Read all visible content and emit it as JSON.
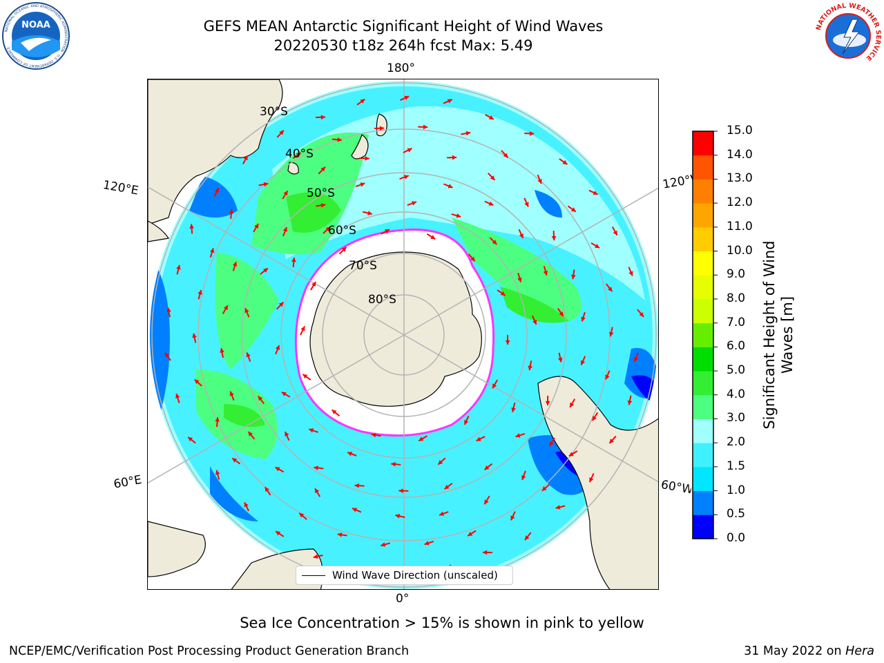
{
  "title": {
    "line1": "GEFS MEAN Antarctic Significant Height of Wind Waves",
    "line2": "20220530 t18z 264h fcst   Max: 5.49"
  },
  "logos": {
    "left": {
      "name": "NOAA",
      "ring_text": "NATIONAL OCEANIC AND ATMOSPHERIC ADMINISTRATION · U.S. DEPARTMENT OF COMMERCE"
    },
    "right": {
      "name": "NATIONAL WEATHER SERVICE"
    }
  },
  "map": {
    "projection": "south polar stereographic",
    "longitude_labels": {
      "top": "180°",
      "bottom": "0°",
      "left_upper": "120°E",
      "left_lower": "60°E",
      "right_upper": "120°W",
      "right_lower": "60°W"
    },
    "latitude_labels": [
      "30°S",
      "40°S",
      "50°S",
      "60°S",
      "70°S",
      "80°S"
    ],
    "legend_label": "Wind Wave Direction (unscaled)",
    "colors": {
      "land": "#efebdb",
      "sea_ice": "#ffffff",
      "ice_edge": [
        "#ff33ff",
        "#ffa500",
        "#ffff00"
      ],
      "arrows": "#ff0000",
      "grid": "#b3b3b3"
    }
  },
  "colorbar": {
    "title": "Significant Height of Wind Waves [m]",
    "ticks": [
      "0.0",
      "0.5",
      "1.0",
      "1.5",
      "2.0",
      "3.0",
      "4.0",
      "5.0",
      "6.0",
      "7.0",
      "8.0",
      "9.0",
      "10.0",
      "11.0",
      "12.0",
      "13.0",
      "14.0",
      "15.0"
    ],
    "colors": [
      "#0000ff",
      "#0080ff",
      "#00e6ff",
      "#40f0ff",
      "#a0ffff",
      "#4dff80",
      "#33ee33",
      "#00dd00",
      "#66ee00",
      "#ccff00",
      "#e6ff00",
      "#ffff00",
      "#ffcc00",
      "#ffa500",
      "#ff8000",
      "#ff5500",
      "#ff0000"
    ]
  },
  "subtitle": "Sea Ice Concentration > 15% is shown in pink to yellow",
  "footer": {
    "left": "NCEP/EMC/Verification Post Processing Product Generation Branch",
    "right_date": "31 May 2022 on ",
    "right_host": "Hera"
  }
}
